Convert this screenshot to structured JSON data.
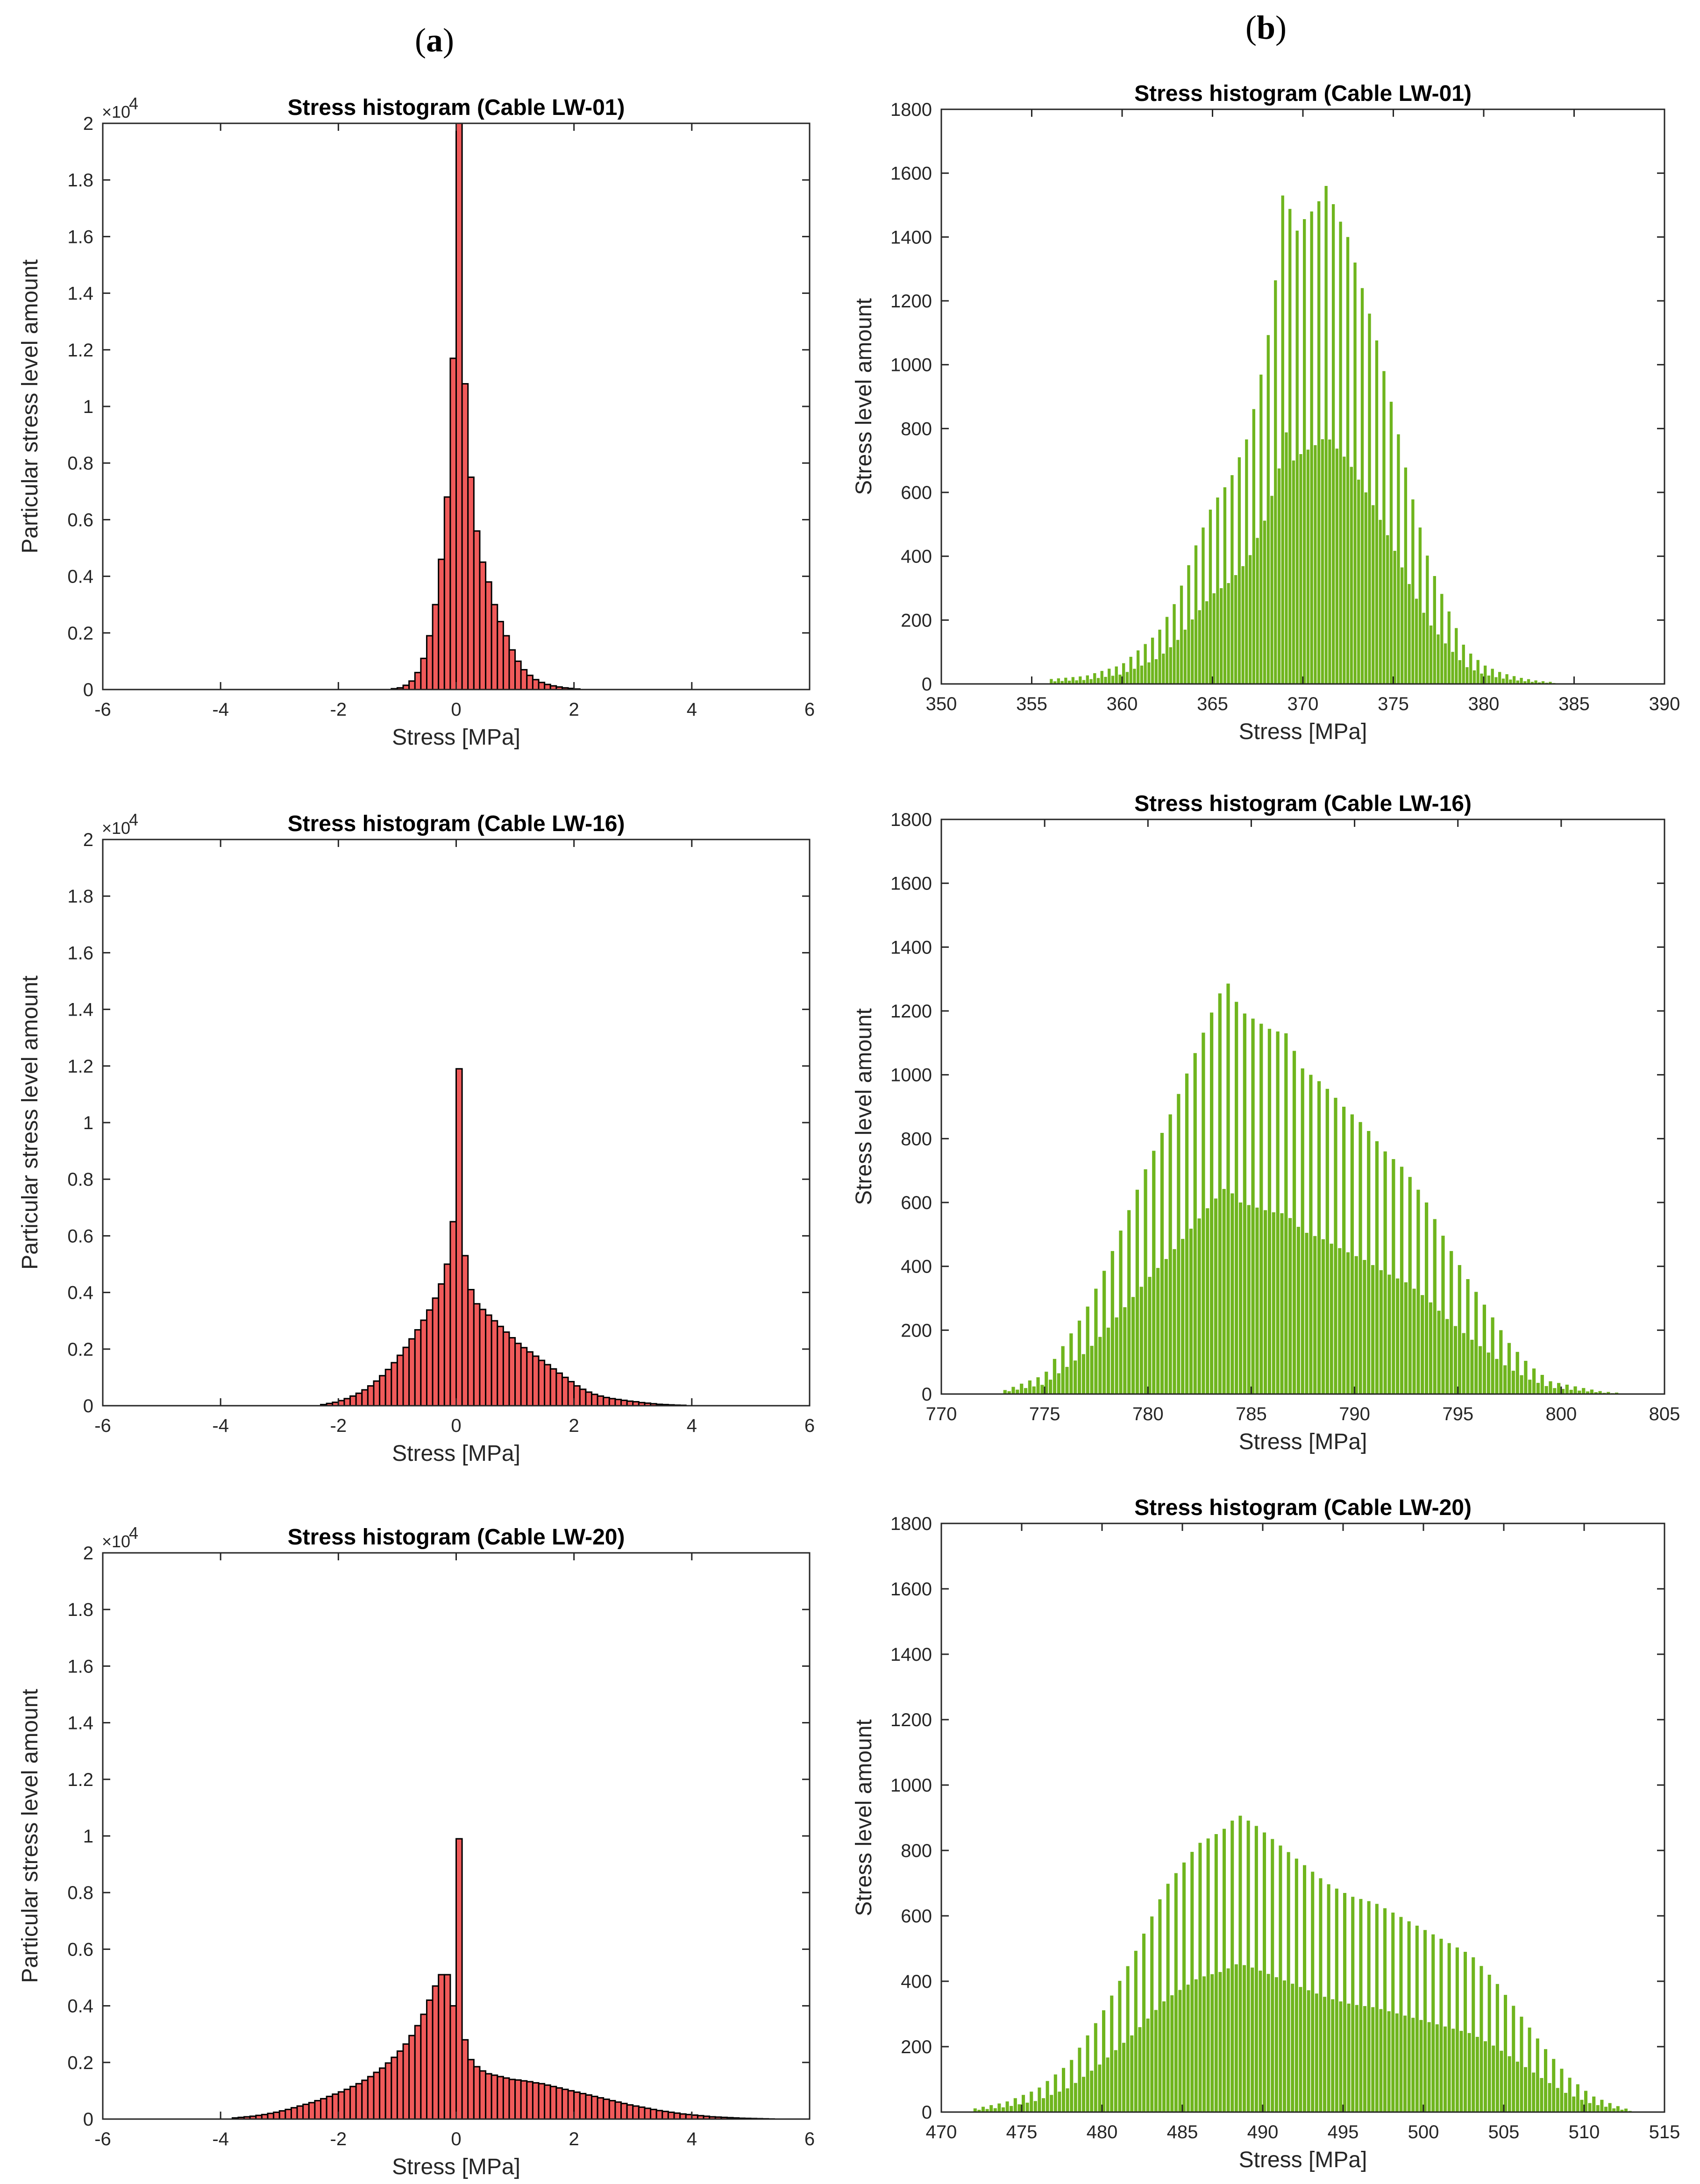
{
  "panel_labels": {
    "a": "a",
    "b": "b"
  },
  "colors": {
    "red_fill": "#f05a5a",
    "red_edge": "#000000",
    "green_fill": "#6fb51e",
    "axis": "#262626"
  },
  "chart_data": [
    {
      "id": "a1",
      "type": "bar",
      "title": "Stress histogram (Cable LW-01)",
      "xlabel": "Stress [MPa]",
      "ylabel": "Particular stress level amount",
      "xlim": [
        -6,
        6
      ],
      "ylim": [
        0,
        20000
      ],
      "y_scale_label": "×10",
      "y_scale_exp": "4",
      "xticks": [
        -6,
        -4,
        -2,
        0,
        2,
        4,
        6
      ],
      "xtick_labels": [
        "-6",
        "-4",
        "-2",
        "0",
        "2",
        "4",
        "6"
      ],
      "yticks": [
        0,
        2000,
        4000,
        6000,
        8000,
        10000,
        12000,
        14000,
        16000,
        18000,
        20000
      ],
      "ytick_labels": [
        "0",
        "0.2",
        "0.4",
        "0.6",
        "0.8",
        "1",
        "1.2",
        "1.4",
        "1.6",
        "1.8",
        "2"
      ],
      "bin_width": 0.1,
      "bin_starts": [
        -1.1,
        -1.0,
        -0.9,
        -0.8,
        -0.7,
        -0.6,
        -0.5,
        -0.4,
        -0.3,
        -0.2,
        -0.1,
        0.0,
        0.1,
        0.2,
        0.3,
        0.4,
        0.5,
        0.6,
        0.7,
        0.8,
        0.9,
        1.0,
        1.1,
        1.2,
        1.3,
        1.4,
        1.5,
        1.6,
        1.7,
        1.8,
        1.9,
        2.0
      ],
      "values": [
        30,
        60,
        150,
        300,
        600,
        1100,
        1900,
        3000,
        4600,
        6800,
        11700,
        20000,
        10800,
        7500,
        5600,
        4500,
        3800,
        3000,
        2400,
        1900,
        1400,
        1000,
        700,
        500,
        350,
        250,
        180,
        130,
        90,
        60,
        40,
        20
      ]
    },
    {
      "id": "a2",
      "type": "bar",
      "title": "Stress histogram (Cable LW-16)",
      "xlabel": "Stress [MPa]",
      "ylabel": "Particular stress level amount",
      "xlim": [
        -6,
        6
      ],
      "ylim": [
        0,
        20000
      ],
      "y_scale_label": "×10",
      "y_scale_exp": "4",
      "xticks": [
        -6,
        -4,
        -2,
        0,
        2,
        4,
        6
      ],
      "xtick_labels": [
        "-6",
        "-4",
        "-2",
        "0",
        "2",
        "4",
        "6"
      ],
      "yticks": [
        0,
        2000,
        4000,
        6000,
        8000,
        10000,
        12000,
        14000,
        16000,
        18000,
        20000
      ],
      "ytick_labels": [
        "0",
        "0.2",
        "0.4",
        "0.6",
        "0.8",
        "1",
        "1.2",
        "1.4",
        "1.6",
        "1.8",
        "2"
      ],
      "bin_width": 0.1,
      "bin_starts": [
        -2.3,
        -2.2,
        -2.1,
        -2.0,
        -1.9,
        -1.8,
        -1.7,
        -1.6,
        -1.5,
        -1.4,
        -1.3,
        -1.2,
        -1.1,
        -1.0,
        -0.9,
        -0.8,
        -0.7,
        -0.6,
        -0.5,
        -0.4,
        -0.3,
        -0.2,
        -0.1,
        0.0,
        0.1,
        0.2,
        0.3,
        0.4,
        0.5,
        0.6,
        0.7,
        0.8,
        0.9,
        1.0,
        1.1,
        1.2,
        1.3,
        1.4,
        1.5,
        1.6,
        1.7,
        1.8,
        1.9,
        2.0,
        2.1,
        2.2,
        2.3,
        2.4,
        2.5,
        2.6,
        2.7,
        2.8,
        2.9,
        3.0,
        3.1,
        3.2,
        3.3,
        3.4,
        3.5,
        3.6,
        3.7,
        3.8
      ],
      "values": [
        40,
        80,
        120,
        180,
        250,
        340,
        440,
        560,
        700,
        870,
        1060,
        1280,
        1520,
        1780,
        2060,
        2360,
        2680,
        3020,
        3380,
        3800,
        4300,
        5000,
        6500,
        11900,
        5300,
        4100,
        3600,
        3400,
        3200,
        3000,
        2800,
        2600,
        2400,
        2200,
        2050,
        1900,
        1750,
        1600,
        1450,
        1300,
        1150,
        1000,
        850,
        700,
        580,
        480,
        400,
        340,
        290,
        250,
        220,
        190,
        160,
        140,
        110,
        90,
        70,
        50,
        40,
        30,
        20,
        15
      ]
    },
    {
      "id": "a3",
      "type": "bar",
      "title": "Stress histogram (Cable LW-20)",
      "xlabel": "Stress [MPa]",
      "ylabel": "Particular stress level amount",
      "xlim": [
        -6,
        6
      ],
      "ylim": [
        0,
        20000
      ],
      "y_scale_label": "×10",
      "y_scale_exp": "4",
      "xticks": [
        -6,
        -4,
        -2,
        0,
        2,
        4,
        6
      ],
      "xtick_labels": [
        "-6",
        "-4",
        "-2",
        "0",
        "2",
        "4",
        "6"
      ],
      "yticks": [
        0,
        2000,
        4000,
        6000,
        8000,
        10000,
        12000,
        14000,
        16000,
        18000,
        20000
      ],
      "ytick_labels": [
        "0",
        "0.2",
        "0.4",
        "0.6",
        "0.8",
        "1",
        "1.2",
        "1.4",
        "1.6",
        "1.8",
        "2"
      ],
      "bin_width": 0.1,
      "bin_starts": [
        -3.8,
        -3.7,
        -3.6,
        -3.5,
        -3.4,
        -3.3,
        -3.2,
        -3.1,
        -3.0,
        -2.9,
        -2.8,
        -2.7,
        -2.6,
        -2.5,
        -2.4,
        -2.3,
        -2.2,
        -2.1,
        -2.0,
        -1.9,
        -1.8,
        -1.7,
        -1.6,
        -1.5,
        -1.4,
        -1.3,
        -1.2,
        -1.1,
        -1.0,
        -0.9,
        -0.8,
        -0.7,
        -0.6,
        -0.5,
        -0.4,
        -0.3,
        -0.2,
        -0.1,
        0.0,
        0.1,
        0.2,
        0.3,
        0.4,
        0.5,
        0.6,
        0.7,
        0.8,
        0.9,
        1.0,
        1.1,
        1.2,
        1.3,
        1.4,
        1.5,
        1.6,
        1.7,
        1.8,
        1.9,
        2.0,
        2.1,
        2.2,
        2.3,
        2.4,
        2.5,
        2.6,
        2.7,
        2.8,
        2.9,
        3.0,
        3.1,
        3.2,
        3.3,
        3.4,
        3.5,
        3.6,
        3.7,
        3.8,
        3.9,
        4.0,
        4.1,
        4.2,
        4.3,
        4.4,
        4.5,
        4.6,
        4.7,
        4.8,
        4.9,
        5.0,
        5.1,
        5.2,
        5.3
      ],
      "values": [
        40,
        60,
        80,
        100,
        130,
        160,
        200,
        240,
        290,
        340,
        400,
        460,
        520,
        580,
        650,
        720,
        800,
        880,
        960,
        1050,
        1150,
        1250,
        1370,
        1500,
        1650,
        1800,
        1980,
        2180,
        2400,
        2650,
        2950,
        3300,
        3700,
        4200,
        4700,
        5100,
        5100,
        4000,
        9900,
        2800,
        2100,
        1850,
        1700,
        1600,
        1550,
        1500,
        1450,
        1400,
        1380,
        1350,
        1320,
        1280,
        1250,
        1200,
        1150,
        1100,
        1050,
        1000,
        950,
        900,
        850,
        800,
        750,
        700,
        650,
        600,
        550,
        500,
        460,
        420,
        380,
        340,
        300,
        270,
        240,
        210,
        180,
        160,
        140,
        120,
        100,
        80,
        70,
        60,
        50,
        40,
        30,
        25,
        20,
        15,
        10,
        5
      ]
    },
    {
      "id": "b1",
      "type": "bar",
      "title": "Stress histogram (Cable LW-01)",
      "xlabel": "Stress [MPa]",
      "ylabel": "Stress level amount",
      "xlim": [
        350,
        390
      ],
      "ylim": [
        0,
        1800
      ],
      "xticks": [
        350,
        355,
        360,
        365,
        370,
        375,
        380,
        385,
        390
      ],
      "xtick_labels": [
        "350",
        "355",
        "360",
        "365",
        "370",
        "375",
        "380",
        "385",
        "390"
      ],
      "yticks": [
        0,
        200,
        400,
        600,
        800,
        1000,
        1200,
        1400,
        1600,
        1800
      ],
      "ytick_labels": [
        "0",
        "200",
        "400",
        "600",
        "800",
        "1000",
        "1200",
        "1400",
        "1600",
        "1800"
      ],
      "bin_start": 356,
      "bin_end": 384,
      "bin_width": 0.2,
      "envelope": [
        [
          355.5,
          0
        ],
        [
          356,
          15
        ],
        [
          358,
          25
        ],
        [
          360,
          60
        ],
        [
          362,
          160
        ],
        [
          363,
          260
        ],
        [
          364,
          420
        ],
        [
          365,
          560
        ],
        [
          366,
          640
        ],
        [
          367,
          780
        ],
        [
          368,
          1050
        ],
        [
          368.7,
          1350
        ],
        [
          369,
          1620
        ],
        [
          369.5,
          1400
        ],
        [
          370,
          1450
        ],
        [
          370.5,
          1480
        ],
        [
          371,
          1520
        ],
        [
          371.3,
          1560
        ],
        [
          372,
          1460
        ],
        [
          372.5,
          1400
        ],
        [
          373,
          1300
        ],
        [
          374,
          1100
        ],
        [
          375,
          860
        ],
        [
          376,
          600
        ],
        [
          377,
          380
        ],
        [
          378,
          240
        ],
        [
          379,
          110
        ],
        [
          380,
          60
        ],
        [
          381,
          35
        ],
        [
          382,
          20
        ],
        [
          383,
          10
        ],
        [
          384,
          5
        ],
        [
          384.5,
          0
        ]
      ],
      "base_ratio": 0.5
    },
    {
      "id": "b2",
      "type": "bar",
      "title": "Stress histogram (Cable LW-16)",
      "xlabel": "Stress [MPa]",
      "ylabel": "Stress level amount",
      "xlim": [
        770,
        805
      ],
      "ylim": [
        0,
        1800
      ],
      "xticks": [
        770,
        775,
        780,
        785,
        790,
        795,
        800,
        805
      ],
      "xtick_labels": [
        "770",
        "775",
        "780",
        "785",
        "790",
        "795",
        "800",
        "805"
      ],
      "yticks": [
        0,
        200,
        400,
        600,
        800,
        1000,
        1200,
        1400,
        1600,
        1800
      ],
      "ytick_labels": [
        "0",
        "200",
        "400",
        "600",
        "800",
        "1000",
        "1200",
        "1400",
        "1600",
        "1800"
      ],
      "bin_start": 773,
      "bin_end": 803,
      "bin_width": 0.2,
      "envelope": [
        [
          772.5,
          0
        ],
        [
          773,
          10
        ],
        [
          775,
          60
        ],
        [
          776,
          160
        ],
        [
          777,
          260
        ],
        [
          778,
          400
        ],
        [
          779,
          560
        ],
        [
          780,
          720
        ],
        [
          781,
          860
        ],
        [
          782,
          1020
        ],
        [
          783,
          1180
        ],
        [
          783.8,
          1300
        ],
        [
          784.5,
          1200
        ],
        [
          785,
          1180
        ],
        [
          786,
          1140
        ],
        [
          786.7,
          1130
        ],
        [
          787.5,
          1020
        ],
        [
          788.5,
          970
        ],
        [
          789.5,
          900
        ],
        [
          790.5,
          840
        ],
        [
          791.5,
          760
        ],
        [
          792.5,
          700
        ],
        [
          793.5,
          600
        ],
        [
          794.5,
          470
        ],
        [
          795.5,
          360
        ],
        [
          796.5,
          260
        ],
        [
          797.5,
          160
        ],
        [
          798.5,
          90
        ],
        [
          799.5,
          40
        ],
        [
          801,
          20
        ],
        [
          802,
          8
        ],
        [
          803,
          3
        ],
        [
          803.5,
          0
        ]
      ],
      "base_ratio": 0.5
    },
    {
      "id": "b3",
      "type": "bar",
      "title": "Stress histogram (Cable LW-20)",
      "xlabel": "Stress [MPa]",
      "ylabel": "Stress level amount",
      "xlim": [
        470,
        515
      ],
      "ylim": [
        0,
        1800
      ],
      "xticks": [
        470,
        475,
        480,
        485,
        490,
        495,
        500,
        505,
        510,
        515
      ],
      "xtick_labels": [
        "470",
        "475",
        "480",
        "485",
        "490",
        "495",
        "500",
        "505",
        "510",
        "515"
      ],
      "yticks": [
        0,
        200,
        400,
        600,
        800,
        1000,
        1200,
        1400,
        1600,
        1800
      ],
      "ytick_labels": [
        "0",
        "200",
        "400",
        "600",
        "800",
        "1000",
        "1200",
        "1400",
        "1600",
        "1800"
      ],
      "bin_start": 472,
      "bin_end": 513,
      "bin_width": 0.25,
      "envelope": [
        [
          471.5,
          0
        ],
        [
          472,
          10
        ],
        [
          474,
          30
        ],
        [
          476,
          70
        ],
        [
          478,
          150
        ],
        [
          480,
          300
        ],
        [
          482,
          480
        ],
        [
          484,
          690
        ],
        [
          486,
          820
        ],
        [
          487.5,
          860
        ],
        [
          488.5,
          910
        ],
        [
          489.5,
          880
        ],
        [
          491,
          820
        ],
        [
          492.5,
          760
        ],
        [
          494,
          700
        ],
        [
          495.5,
          660
        ],
        [
          497,
          640
        ],
        [
          498.5,
          600
        ],
        [
          500,
          560
        ],
        [
          501.5,
          520
        ],
        [
          503,
          480
        ],
        [
          504.5,
          400
        ],
        [
          506,
          300
        ],
        [
          507.5,
          200
        ],
        [
          509,
          110
        ],
        [
          510.5,
          50
        ],
        [
          512,
          20
        ],
        [
          513,
          5
        ],
        [
          513.5,
          0
        ]
      ],
      "base_ratio": 0.5
    }
  ]
}
